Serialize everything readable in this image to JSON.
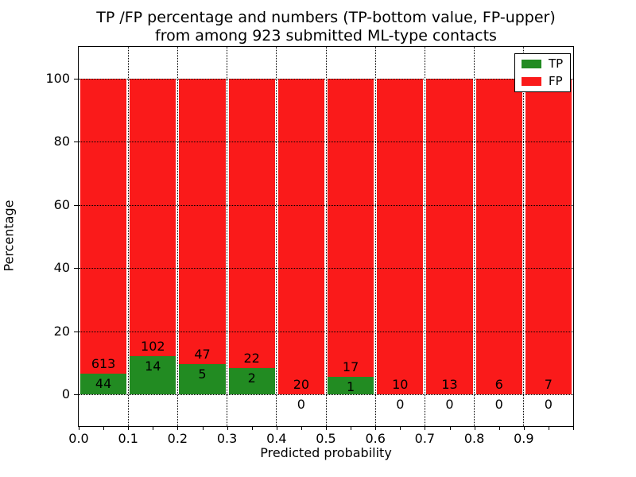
{
  "figure": {
    "title_line1": "TP /FP percentage and numbers (TP-bottom value, FP-upper)",
    "title_line2": "from among 923 submitted ML-type contacts"
  },
  "axes": {
    "xlabel": "Predicted probability",
    "ylabel": "Percentage"
  },
  "legend": {
    "items": [
      {
        "label": "TP",
        "color": "#228b22"
      },
      {
        "label": "FP",
        "color": "#fa1a1a"
      }
    ]
  },
  "chart_data": {
    "type": "bar",
    "subtype": "stacked-percentage-histogram",
    "title": "TP /FP percentage and numbers (TP-bottom value, FP-upper)\nfrom among 923 submitted ML-type contacts",
    "xlabel": "Predicted probability",
    "ylabel": "Percentage",
    "total_contacts": 923,
    "bin_starts": [
      0.0,
      0.1,
      0.2,
      0.3,
      0.4,
      0.5,
      0.6,
      0.7,
      0.8,
      0.9
    ],
    "bin_width": 0.1,
    "series": [
      {
        "name": "TP",
        "color": "#228b22",
        "counts": [
          44,
          14,
          5,
          2,
          0,
          1,
          0,
          0,
          0,
          0
        ]
      },
      {
        "name": "FP",
        "color": "#fa1a1a",
        "counts": [
          613,
          102,
          47,
          22,
          20,
          17,
          10,
          13,
          6,
          7
        ]
      }
    ],
    "tp_percent": [
      6.7,
      12.07,
      9.62,
      8.33,
      0.0,
      5.56,
      0.0,
      0.0,
      0.0,
      0.0
    ],
    "xticks": [
      "0.0",
      "0.1",
      "0.2",
      "0.3",
      "0.4",
      "0.5",
      "0.6",
      "0.7",
      "0.8",
      "0.9"
    ],
    "yticks": [
      "0",
      "20",
      "40",
      "60",
      "80",
      "100"
    ],
    "xlim": [
      0.0,
      1.0
    ],
    "ylim": [
      -10,
      110
    ],
    "grid": "dotted",
    "legend_position": "upper right"
  }
}
